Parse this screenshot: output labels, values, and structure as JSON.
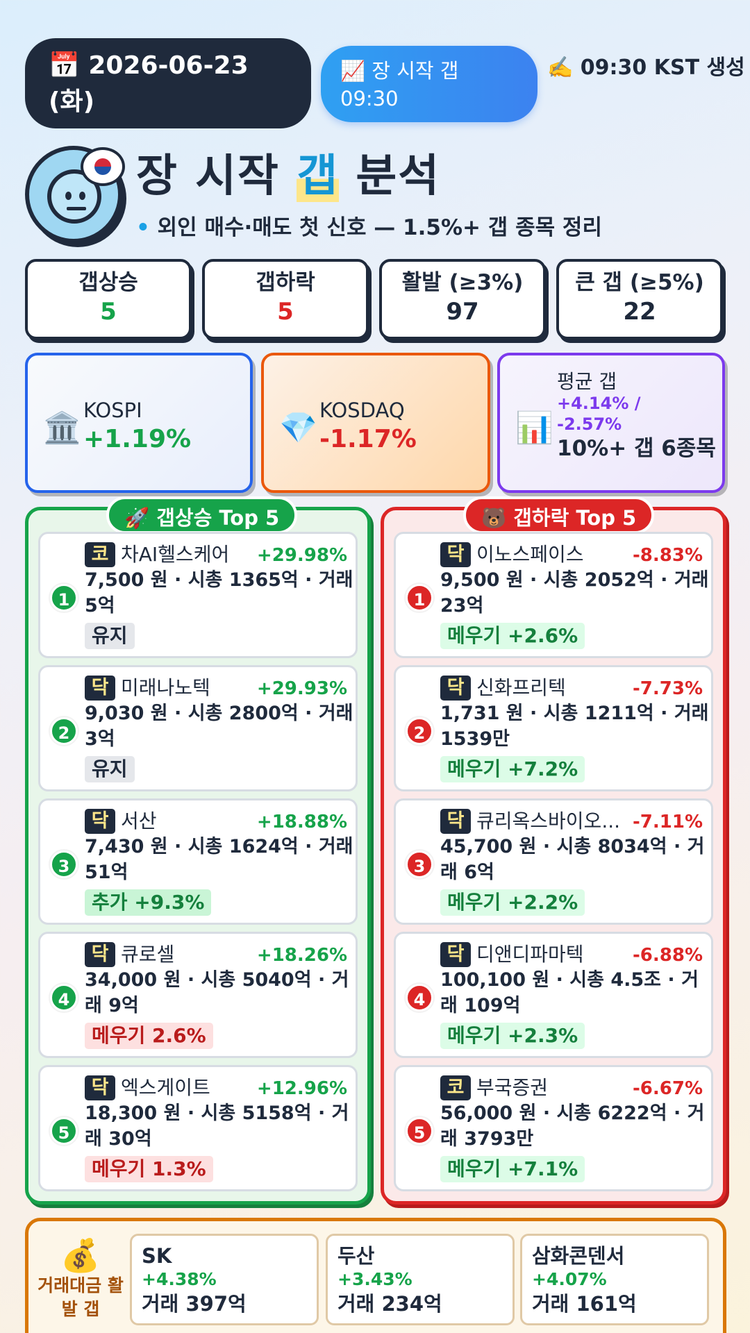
{
  "header": {
    "date": "📅 2026-06-23 (화)",
    "session": "📈 장 시작 갭 09:30",
    "generated": "✍️ 09:30 KST 생성"
  },
  "title": {
    "before": "장 시작 ",
    "highlight": "갭",
    "after": " 분석",
    "subtitle": "외인 매수·매도 첫 신호 — 1.5%+ 갭 종목 정리",
    "subtitle_dot": "•"
  },
  "stats": [
    {
      "label": "갭상승",
      "value": "5",
      "color": "#16a34a"
    },
    {
      "label": "갭하락",
      "value": "5",
      "color": "#dc2626"
    },
    {
      "label": "활발 (≥3%)",
      "value": "97",
      "color": "#1f2a3c"
    },
    {
      "label": "큰 갭 (≥5%)",
      "value": "22",
      "color": "#1f2a3c"
    }
  ],
  "indices": {
    "kospi": {
      "icon": "🏛️",
      "name": "KOSPI",
      "change": "+1.19%"
    },
    "kosdaq": {
      "icon": "💎",
      "name": "KOSDAQ",
      "change": "-1.17%"
    },
    "avg": {
      "icon": "📊",
      "label": "평균 갭",
      "value": "+4.14% / -2.57%",
      "note": "10%+ 갭 6종목"
    }
  },
  "gap_up": {
    "title": "🚀 갭상승 Top 5",
    "items": [
      {
        "rank": "1",
        "market": "코",
        "name": "차AI헬스케어",
        "change": "+29.98%",
        "detail": "7,500 원 · 시총 1365억 · 거래 5억",
        "tag": "유지",
        "tag_type": "hold"
      },
      {
        "rank": "2",
        "market": "닥",
        "name": "미래나노텍",
        "change": "+29.93%",
        "detail": "9,030 원 · 시총 2800억 · 거래 3억",
        "tag": "유지",
        "tag_type": "hold"
      },
      {
        "rank": "3",
        "market": "닥",
        "name": "서산",
        "change": "+18.88%",
        "detail": "7,430 원 · 시총 1624억 · 거래 51억",
        "tag": "추가 +9.3%",
        "tag_type": "add"
      },
      {
        "rank": "4",
        "market": "닥",
        "name": "큐로셀",
        "change": "+18.26%",
        "detail": "34,000 원 · 시총 5040억 · 거래 9억",
        "tag": "메우기 2.6%",
        "tag_type": "fill-red"
      },
      {
        "rank": "5",
        "market": "닥",
        "name": "엑스게이트",
        "change": "+12.96%",
        "detail": "18,300 원 · 시총 5158억 · 거래 30억",
        "tag": "메우기 1.3%",
        "tag_type": "fill-red"
      }
    ]
  },
  "gap_down": {
    "title": "🐻 갭하락 Top 5",
    "items": [
      {
        "rank": "1",
        "market": "닥",
        "name": "이노스페이스",
        "change": "-8.83%",
        "detail": "9,500 원 · 시총 2052억 · 거래 23억",
        "tag": "메우기 +2.6%",
        "tag_type": "fill-green"
      },
      {
        "rank": "2",
        "market": "닥",
        "name": "신화프리텍",
        "change": "-7.73%",
        "detail": "1,731 원 · 시총 1211억 · 거래 1539만",
        "tag": "메우기 +7.2%",
        "tag_type": "fill-green"
      },
      {
        "rank": "3",
        "market": "닥",
        "name": "큐리옥스바이오...",
        "change": "-7.11%",
        "detail": "45,700 원 · 시총 8034억 · 거래 6억",
        "tag": "메우기 +2.2%",
        "tag_type": "fill-green"
      },
      {
        "rank": "4",
        "market": "닥",
        "name": "디앤디파마텍",
        "change": "-6.88%",
        "detail": "100,100 원 · 시총 4.5조 · 거래 109억",
        "tag": "메우기 +2.3%",
        "tag_type": "fill-green"
      },
      {
        "rank": "5",
        "market": "코",
        "name": "부국증권",
        "change": "-6.67%",
        "detail": "56,000 원 · 시총 6222억 · 거래 3793만",
        "tag": "메우기 +7.1%",
        "tag_type": "fill-green"
      }
    ]
  },
  "volume": {
    "icon": "💰",
    "label": "거래대금 활발 갭",
    "items": [
      {
        "name": "SK",
        "change": "+4.38%",
        "volume": "거래 397억"
      },
      {
        "name": "두산",
        "change": "+3.43%",
        "volume": "거래 234억"
      },
      {
        "name": "삼화콘덴서",
        "change": "+4.07%",
        "volume": "거래 161억"
      }
    ]
  },
  "colors": {
    "up": "#16a34a",
    "down": "#dc2626",
    "navy": "#1f2a3c",
    "accent_blue": "#1596d4",
    "kospi_border": "#2563eb",
    "kosdaq_border": "#ea580c",
    "avg_border": "#7c3aed",
    "volume_border": "#d97706"
  }
}
